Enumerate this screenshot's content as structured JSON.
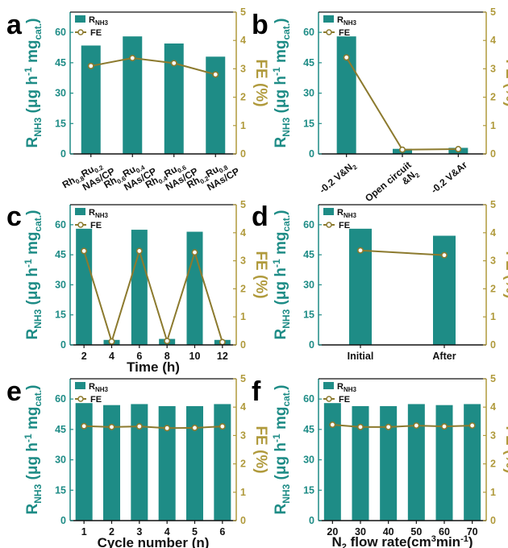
{
  "colors": {
    "bar": "#1e8c86",
    "line": "#8c7a2e",
    "left_axis": "#1e8c86",
    "right_axis": "#b09a3c"
  },
  "chart_data": [
    {
      "panel": "a",
      "type": "bar+line",
      "categories": [
        [
          "Rh",
          "0.8",
          "Ru",
          "0.2",
          "NAs/CP"
        ],
        [
          "Rh",
          "0.6",
          "Ru",
          "0.4",
          "NAs/CP"
        ],
        [
          "Rh",
          "0.4",
          "Ru",
          "0.6",
          "NAs/CP"
        ],
        [
          "Rh",
          "0.2",
          "Ru",
          "0.8",
          "NAs/CP"
        ]
      ],
      "series": [
        {
          "name": "R",
          "name_sub": "NH3",
          "axis": "left",
          "kind": "bar",
          "values": [
            53.5,
            58,
            54.5,
            48
          ]
        },
        {
          "name": "FE",
          "axis": "right",
          "kind": "line",
          "values": [
            3.1,
            3.38,
            3.2,
            2.8
          ]
        }
      ],
      "ylim_left": [
        0,
        70
      ],
      "yticks_left": [
        0,
        15,
        30,
        45,
        60
      ],
      "ylim_right": [
        0,
        5
      ],
      "yticks_right": [
        0,
        1,
        2,
        3,
        4,
        5
      ],
      "xlabel": "",
      "legend": "top-left"
    },
    {
      "panel": "b",
      "type": "bar+line",
      "categories": [
        [
          "-0.2 V&N",
          "2"
        ],
        [
          "Open circuit",
          "&N",
          "2"
        ],
        [
          "-0.2 V&Ar"
        ]
      ],
      "series": [
        {
          "name": "R",
          "name_sub": "NH3",
          "axis": "left",
          "kind": "bar",
          "values": [
            58,
            2.5,
            3
          ]
        },
        {
          "name": "FE",
          "axis": "right",
          "kind": "line",
          "values": [
            3.4,
            0.15,
            0.17
          ]
        }
      ],
      "ylim_left": [
        0,
        70
      ],
      "yticks_left": [
        0,
        15,
        30,
        45,
        60
      ],
      "ylim_right": [
        0,
        5
      ],
      "yticks_right": [
        0,
        1,
        2,
        3,
        4,
        5
      ],
      "xlabel": "",
      "legend": "top-left"
    },
    {
      "panel": "c",
      "type": "bar+line",
      "categories": [
        "2",
        "4",
        "6",
        "8",
        "10",
        "12"
      ],
      "series": [
        {
          "name": "R",
          "name_sub": "NH3",
          "axis": "left",
          "kind": "bar",
          "values": [
            58,
            2.5,
            57.5,
            3,
            56.5,
            2.5
          ]
        },
        {
          "name": "FE",
          "axis": "right",
          "kind": "line",
          "values": [
            3.35,
            0.12,
            3.35,
            0.14,
            3.3,
            0.1
          ]
        }
      ],
      "ylim_left": [
        0,
        70
      ],
      "yticks_left": [
        0,
        15,
        30,
        45,
        60
      ],
      "ylim_right": [
        0,
        5
      ],
      "yticks_right": [
        0,
        1,
        2,
        3,
        4,
        5
      ],
      "xlabel": "Time (h)",
      "legend": "top-left"
    },
    {
      "panel": "d",
      "type": "bar+line",
      "categories": [
        "Initial",
        "After"
      ],
      "series": [
        {
          "name": "R",
          "name_sub": "NH3",
          "axis": "left",
          "kind": "bar",
          "values": [
            58,
            54.5
          ]
        },
        {
          "name": "FE",
          "axis": "right",
          "kind": "line",
          "values": [
            3.37,
            3.2
          ]
        }
      ],
      "ylim_left": [
        0,
        70
      ],
      "yticks_left": [
        0,
        15,
        30,
        45,
        60
      ],
      "ylim_right": [
        0,
        5
      ],
      "yticks_right": [
        0,
        1,
        2,
        3,
        4,
        5
      ],
      "xlabel": "",
      "legend": "top-left"
    },
    {
      "panel": "e",
      "type": "bar+line",
      "categories": [
        "1",
        "2",
        "3",
        "4",
        "5",
        "6"
      ],
      "series": [
        {
          "name": "R",
          "name_sub": "NH3",
          "axis": "left",
          "kind": "bar",
          "values": [
            58,
            57,
            57.5,
            56.5,
            56.5,
            57.5
          ]
        },
        {
          "name": "FE",
          "axis": "right",
          "kind": "line",
          "values": [
            3.33,
            3.3,
            3.32,
            3.26,
            3.27,
            3.32
          ]
        }
      ],
      "ylim_left": [
        0,
        70
      ],
      "yticks_left": [
        0,
        15,
        30,
        45,
        60
      ],
      "ylim_right": [
        0,
        5
      ],
      "yticks_right": [
        0,
        1,
        2,
        3,
        4,
        5
      ],
      "xlabel": "Cycle number (n)",
      "legend": "top-left"
    },
    {
      "panel": "f",
      "type": "bar+line",
      "categories": [
        "20",
        "30",
        "40",
        "50",
        "60",
        "70"
      ],
      "series": [
        {
          "name": "R",
          "name_sub": "NH3",
          "axis": "left",
          "kind": "bar",
          "values": [
            58,
            56.5,
            56.5,
            57.5,
            57,
            57.5
          ]
        },
        {
          "name": "FE",
          "axis": "right",
          "kind": "line",
          "values": [
            3.38,
            3.3,
            3.3,
            3.35,
            3.32,
            3.35
          ]
        }
      ],
      "ylim_left": [
        0,
        70
      ],
      "yticks_left": [
        0,
        15,
        30,
        45,
        60
      ],
      "ylim_right": [
        0,
        5
      ],
      "yticks_right": [
        0,
        1,
        2,
        3,
        4,
        5
      ],
      "xlabel": "N2 flow rate(cm3min-1)",
      "legend": "top-left"
    }
  ],
  "axis_titles": {
    "left": {
      "main": "R",
      "sub": "NH3",
      "rest": " (μg h",
      "sup": "-1",
      "mid": " mg",
      "sub2": "cat.",
      "end": ")"
    },
    "right": "FE (%)",
    "flow": {
      "a": "N",
      "sub": "2",
      "b": " flow rate(cm",
      "sup": "3",
      "c": "min",
      "sup2": "-1",
      "d": ")"
    }
  }
}
